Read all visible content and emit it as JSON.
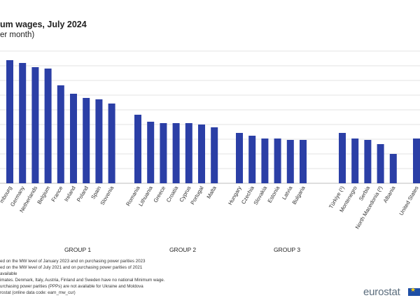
{
  "title": "um wages, July 2024",
  "subtitle": "er month)",
  "chart_data": {
    "type": "bar",
    "ylim": [
      0,
      100
    ],
    "grid": true,
    "color": "#2b3fa6",
    "groups": [
      {
        "name": "GROUP 1",
        "categories": [
          "mbourg",
          "Germany",
          "Netherlands",
          "Belgium",
          "France",
          "Ireland",
          "Poland",
          "Spain",
          "Slovenia"
        ],
        "values": [
          88,
          86,
          83,
          82,
          70,
          64,
          61,
          60,
          57
        ]
      },
      {
        "name": "GROUP 2",
        "categories": [
          "Romania",
          "Lithuania",
          "Greece",
          "Croatia",
          "Cyprus",
          "Portugal",
          "Malta"
        ],
        "values": [
          49,
          44,
          43,
          43,
          43,
          42,
          40
        ]
      },
      {
        "name": "GROUP 3",
        "categories": [
          "Hungary",
          "Czechia",
          "Slovakia",
          "Estonia",
          "Latvia",
          "Bulgaria"
        ],
        "values": [
          36,
          34,
          32,
          32,
          31,
          31
        ]
      },
      {
        "name": "",
        "categories": [
          "Türkiye (¹)",
          "Montenegro",
          "Serbia",
          "North Macedonia (²)",
          "Albania"
        ],
        "values": [
          36,
          32,
          31,
          28,
          21
        ]
      },
      {
        "name": "",
        "categories": [
          "United States"
        ],
        "values": [
          32
        ]
      }
    ]
  },
  "notes": [
    "ed on the MW level of January 2023  and on purchasing power parities 2023",
    "ed on the MW level of July 2021 and on purchasing power parities of 2021",
    " available",
    "imates. Denmark, Italy, Austria, Finland and Sweden have no national Minimum wage.",
    "urchasing power parities (PPPs) are not available for Ukraine and Moldova",
    "rostat (online data code: earn_mw_cur)"
  ],
  "logo_text": "eurostat"
}
